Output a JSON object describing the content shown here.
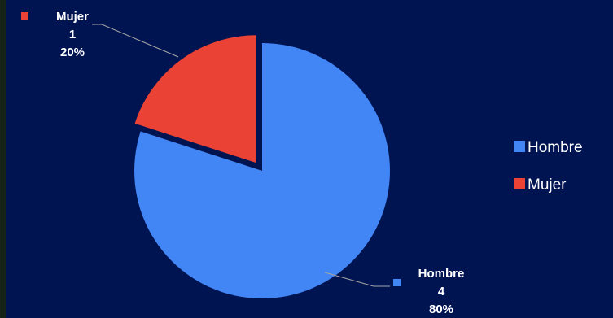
{
  "chart_data": {
    "type": "pie",
    "categories": [
      "Hombre",
      "Mujer"
    ],
    "values": [
      4,
      1
    ],
    "percent_labels": [
      "80%",
      "20%"
    ],
    "colors": [
      "#4285f4",
      "#ea4335"
    ],
    "exploded": [
      "Mujer"
    ],
    "legend_position": "right",
    "data_labels_show": [
      "category",
      "value",
      "percent"
    ],
    "grid": false
  }
}
